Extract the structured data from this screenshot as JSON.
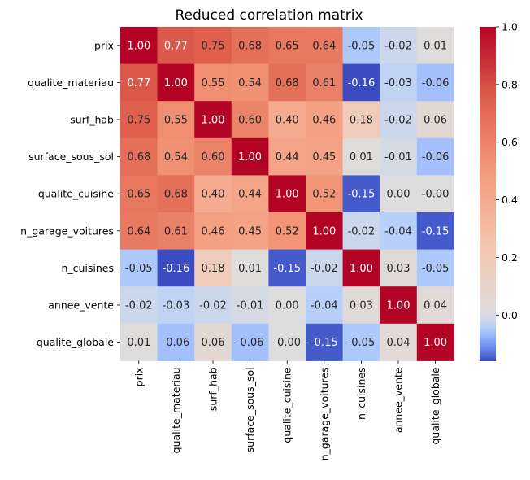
{
  "chart_data": {
    "type": "heatmap",
    "title": "Reduced correlation matrix",
    "xlabel": "",
    "ylabel": "",
    "labels": [
      "prix",
      "qualite_materiau",
      "surf_hab",
      "surface_sous_sol",
      "qualite_cuisine",
      "n_garage_voitures",
      "n_cuisines",
      "annee_vente",
      "qualite_globale"
    ],
    "values": [
      [
        1.0,
        0.77,
        0.75,
        0.68,
        0.65,
        0.64,
        -0.05,
        -0.02,
        0.01
      ],
      [
        0.77,
        1.0,
        0.55,
        0.54,
        0.68,
        0.61,
        -0.16,
        -0.03,
        -0.06
      ],
      [
        0.75,
        0.55,
        1.0,
        0.6,
        0.4,
        0.46,
        0.18,
        -0.02,
        0.06
      ],
      [
        0.68,
        0.54,
        0.6,
        1.0,
        0.44,
        0.45,
        0.01,
        -0.01,
        -0.06
      ],
      [
        0.65,
        0.68,
        0.4,
        0.44,
        1.0,
        0.52,
        -0.15,
        0.0,
        -0.0
      ],
      [
        0.64,
        0.61,
        0.46,
        0.45,
        0.52,
        1.0,
        -0.02,
        -0.04,
        -0.15
      ],
      [
        -0.05,
        -0.16,
        0.18,
        0.01,
        -0.15,
        -0.02,
        1.0,
        0.03,
        -0.05
      ],
      [
        -0.02,
        -0.03,
        -0.02,
        -0.01,
        0.0,
        -0.04,
        0.03,
        1.0,
        0.04
      ],
      [
        0.01,
        -0.06,
        0.06,
        -0.06,
        -0.0,
        -0.15,
        -0.05,
        0.04,
        1.0
      ]
    ],
    "value_labels": [
      [
        "1.00",
        "0.77",
        "0.75",
        "0.68",
        "0.65",
        "0.64",
        "-0.05",
        "-0.02",
        "0.01"
      ],
      [
        "0.77",
        "1.00",
        "0.55",
        "0.54",
        "0.68",
        "0.61",
        "-0.16",
        "-0.03",
        "-0.06"
      ],
      [
        "0.75",
        "0.55",
        "1.00",
        "0.60",
        "0.40",
        "0.46",
        "0.18",
        "-0.02",
        "0.06"
      ],
      [
        "0.68",
        "0.54",
        "0.60",
        "1.00",
        "0.44",
        "0.45",
        "0.01",
        "-0.01",
        "-0.06"
      ],
      [
        "0.65",
        "0.68",
        "0.40",
        "0.44",
        "1.00",
        "0.52",
        "-0.15",
        "0.00",
        "-0.00"
      ],
      [
        "0.64",
        "0.61",
        "0.46",
        "0.45",
        "0.52",
        "1.00",
        "-0.02",
        "-0.04",
        "-0.15"
      ],
      [
        "-0.05",
        "-0.16",
        "0.18",
        "0.01",
        "-0.15",
        "-0.02",
        "1.00",
        "0.03",
        "-0.05"
      ],
      [
        "-0.02",
        "-0.03",
        "-0.02",
        "-0.01",
        "0.00",
        "-0.04",
        "0.03",
        "1.00",
        "0.04"
      ],
      [
        "0.01",
        "-0.06",
        "0.06",
        "-0.06",
        "-0.00",
        "-0.15",
        "-0.05",
        "0.04",
        "1.00"
      ]
    ],
    "colormap": "coolwarm",
    "color_center": 0,
    "color_range": [
      -0.16,
      1.0
    ],
    "colorbar_ticks": [
      0.0,
      0.2,
      0.4,
      0.6,
      0.8,
      1.0
    ],
    "colorbar_tick_labels": [
      "0.0",
      "0.2",
      "0.4",
      "0.6",
      "0.8",
      "1.0"
    ],
    "grid": false,
    "legend": "colorbar-right"
  }
}
